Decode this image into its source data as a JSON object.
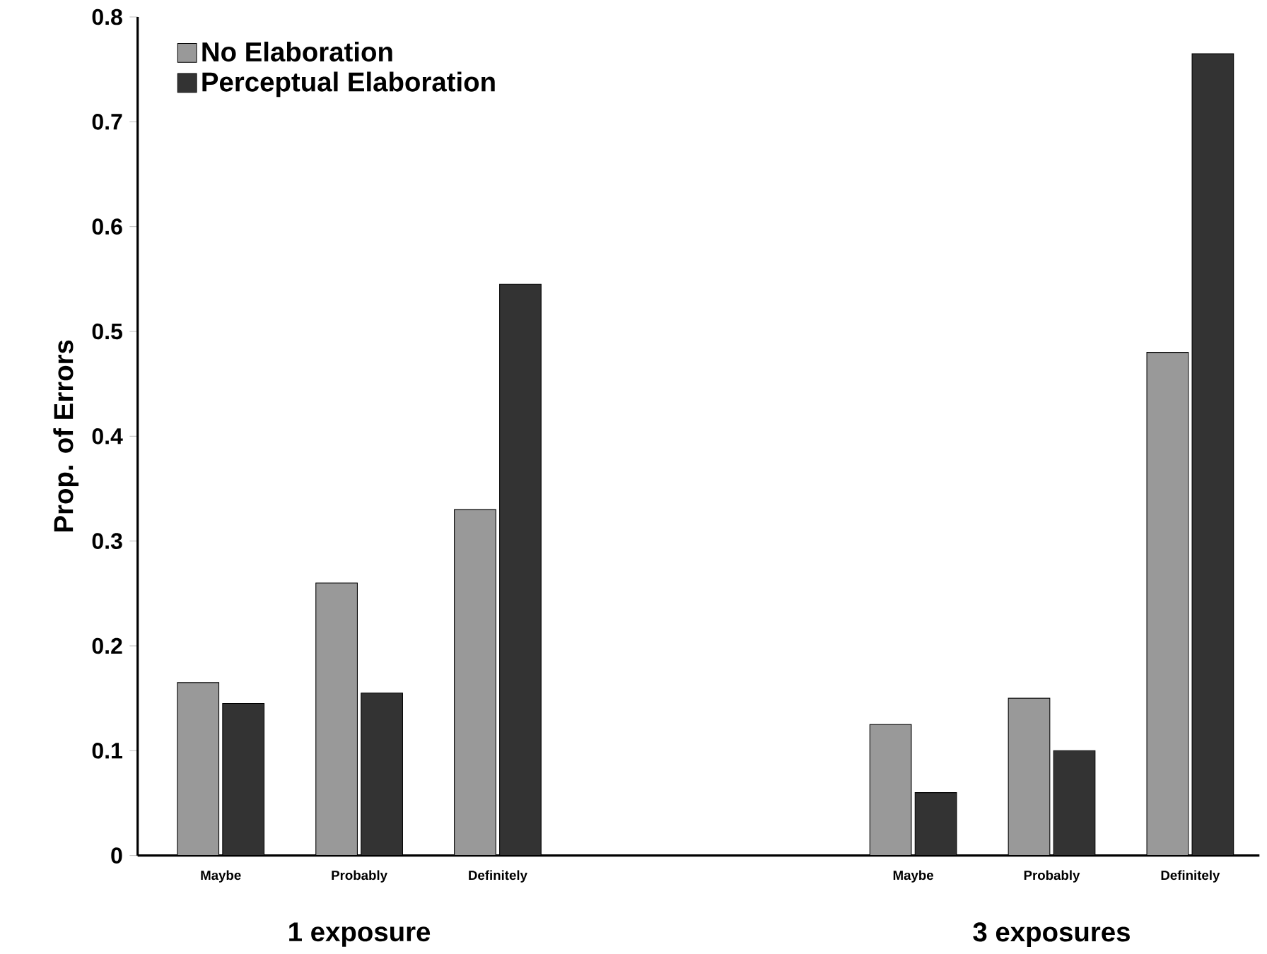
{
  "chart_data": {
    "type": "bar",
    "ylabel": "Prop. of Errors",
    "categories": [
      "Maybe",
      "Probably",
      "Definitely",
      null,
      null,
      "Maybe",
      "Probably",
      "Definitely"
    ],
    "series": [
      {
        "name": "No Elaboration",
        "color": "#999999",
        "values": [
          0.165,
          0.26,
          0.33,
          null,
          null,
          0.125,
          0.15,
          0.48
        ]
      },
      {
        "name": "Perceptual Elaboration",
        "color": "#333333",
        "values": [
          0.145,
          0.155,
          0.545,
          null,
          null,
          0.06,
          0.1,
          0.765
        ]
      }
    ],
    "annotations": [
      "1 exposure",
      "3 exposures"
    ],
    "ylim": [
      0,
      0.8
    ],
    "yticks": [
      0,
      0.1,
      0.2,
      0.3,
      0.4,
      0.5,
      0.6,
      0.7,
      0.8
    ],
    "grid": false,
    "legend": "top left"
  }
}
